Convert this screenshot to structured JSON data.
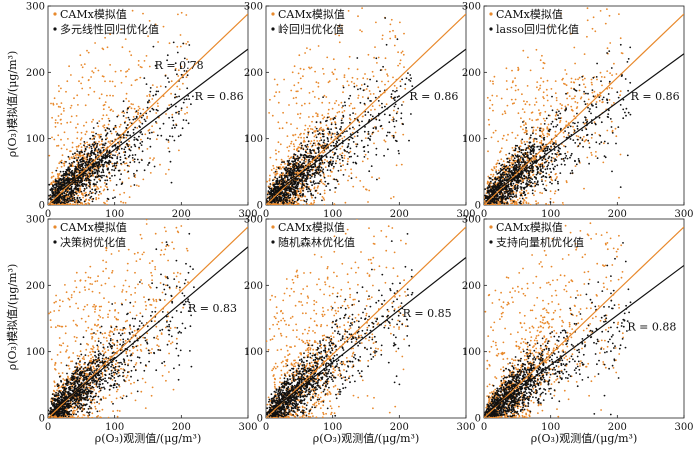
{
  "figure": {
    "ylabel": "ρ(O₃)模拟值/(μg/m³)",
    "xlabel": "ρ(O₃)观测值/(μg/m³)",
    "colors": {
      "camx": "#e8892c",
      "optimized": "#111111"
    }
  },
  "chart_data": [
    {
      "type": "scatter",
      "xlim": [
        0,
        300
      ],
      "ylim": [
        0,
        300
      ],
      "xticks": [
        0,
        100,
        200,
        300
      ],
      "yticks": [
        0,
        100,
        200,
        300
      ],
      "legend_placement": "top-left",
      "series": [
        {
          "name": "CAMx模拟值",
          "color": "#e8892c",
          "fit_line": [
            [
              0,
              0
            ],
            [
              300,
              288
            ]
          ],
          "r_label": "R = 0.78",
          "r_anchor": [
            160,
            205
          ]
        },
        {
          "name": "多元线性回归优化值",
          "color": "#111111",
          "fit_line": [
            [
              0,
              8
            ],
            [
              300,
              235
            ]
          ],
          "r_label": "R = 0.86",
          "r_anchor": [
            220,
            158
          ]
        }
      ]
    },
    {
      "type": "scatter",
      "xlim": [
        0,
        300
      ],
      "ylim": [
        0,
        300
      ],
      "xticks": [
        0,
        100,
        200,
        300
      ],
      "yticks": [
        0,
        100,
        200,
        300
      ],
      "legend_placement": "top-left",
      "series": [
        {
          "name": "CAMx模拟值",
          "color": "#e8892c",
          "fit_line": [
            [
              0,
              0
            ],
            [
              300,
              288
            ]
          ]
        },
        {
          "name": "岭回归优化值",
          "color": "#111111",
          "fit_line": [
            [
              0,
              8
            ],
            [
              300,
              235
            ]
          ],
          "r_label": "R = 0.86",
          "r_anchor": [
            215,
            158
          ]
        }
      ]
    },
    {
      "type": "scatter",
      "xlim": [
        0,
        300
      ],
      "ylim": [
        0,
        300
      ],
      "xticks": [
        0,
        100,
        200,
        300
      ],
      "yticks": [
        0,
        100,
        200,
        300
      ],
      "legend_placement": "top-left",
      "series": [
        {
          "name": "CAMx模拟值",
          "color": "#e8892c",
          "fit_line": [
            [
              0,
              0
            ],
            [
              300,
              288
            ]
          ]
        },
        {
          "name": "lasso回归优化值",
          "color": "#111111",
          "fit_line": [
            [
              0,
              8
            ],
            [
              300,
              228
            ]
          ],
          "r_label": "R = 0.86",
          "r_anchor": [
            220,
            158
          ]
        }
      ]
    },
    {
      "type": "scatter",
      "xlim": [
        0,
        300
      ],
      "ylim": [
        0,
        300
      ],
      "xticks": [
        0,
        100,
        200,
        300
      ],
      "yticks": [
        0,
        100,
        200,
        300
      ],
      "legend_placement": "top-left",
      "series": [
        {
          "name": "CAMx模拟值",
          "color": "#e8892c",
          "fit_line": [
            [
              0,
              0
            ],
            [
              300,
              288
            ]
          ]
        },
        {
          "name": "决策树优化值",
          "color": "#111111",
          "fit_line": [
            [
              0,
              5
            ],
            [
              300,
              258
            ]
          ],
          "r_label": "R = 0.83",
          "r_anchor": [
            210,
            160
          ]
        }
      ]
    },
    {
      "type": "scatter",
      "xlim": [
        0,
        300
      ],
      "ylim": [
        0,
        300
      ],
      "xticks": [
        0,
        100,
        200,
        300
      ],
      "yticks": [
        0,
        100,
        200,
        300
      ],
      "legend_placement": "top-left",
      "series": [
        {
          "name": "CAMx模拟值",
          "color": "#e8892c",
          "fit_line": [
            [
              0,
              0
            ],
            [
              300,
              288
            ]
          ]
        },
        {
          "name": "随机森林优化值",
          "color": "#111111",
          "fit_line": [
            [
              0,
              5
            ],
            [
              300,
              242
            ]
          ],
          "r_label": "R = 0.85",
          "r_anchor": [
            205,
            152
          ]
        }
      ]
    },
    {
      "type": "scatter",
      "xlim": [
        0,
        300
      ],
      "ylim": [
        0,
        300
      ],
      "xticks": [
        0,
        100,
        200,
        300
      ],
      "yticks": [
        0,
        100,
        200,
        300
      ],
      "legend_placement": "top-left",
      "series": [
        {
          "name": "CAMx模拟值",
          "color": "#e8892c",
          "fit_line": [
            [
              0,
              0
            ],
            [
              300,
              288
            ]
          ]
        },
        {
          "name": "支持向量机优化值",
          "color": "#111111",
          "fit_line": [
            [
              0,
              5
            ],
            [
              300,
              230
            ]
          ],
          "r_label": "R = 0.88",
          "r_anchor": [
            215,
            132
          ]
        }
      ]
    }
  ]
}
